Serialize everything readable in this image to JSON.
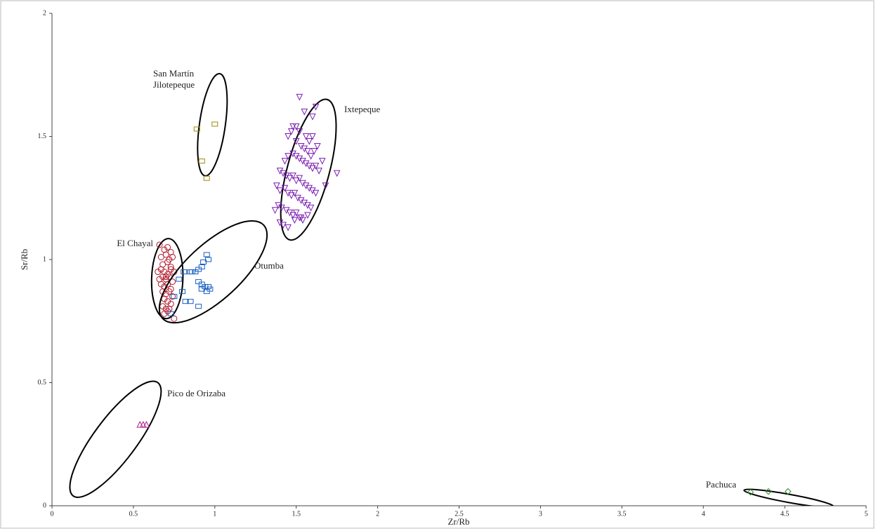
{
  "chart_data": {
    "type": "scatter",
    "x_label": "Zr/Rb",
    "y_label": "Sr/Rb",
    "xlim": [
      0,
      5
    ],
    "ylim": [
      0,
      2
    ],
    "xticks": [
      0,
      0.5,
      1,
      1.5,
      2,
      2.5,
      3,
      3.5,
      4,
      4.5,
      5
    ],
    "yticks": [
      0,
      0.5,
      1,
      1.5,
      2
    ],
    "series": [
      {
        "name": "San Martín\nJilotepeque",
        "color": "#9a8a10",
        "marker": "square",
        "x": [
          0.89,
          1.0,
          0.92,
          0.95
        ],
        "values": [
          1.53,
          1.55,
          1.4,
          1.33
        ],
        "ellipse": {
          "major": [
            [
              1.03,
              1.755
            ],
            [
              0.94,
              1.34
            ]
          ],
          "ratio": 0.25
        }
      },
      {
        "name": "Ixtepeque",
        "color": "#7a1fb0",
        "marker": "triangle-down",
        "x": [
          1.52,
          1.55,
          1.62,
          1.6,
          1.48,
          1.5,
          1.45,
          1.47,
          1.52,
          1.56,
          1.58,
          1.6,
          1.63,
          1.66,
          1.5,
          1.53,
          1.55,
          1.57,
          1.59,
          1.61,
          1.43,
          1.45,
          1.48,
          1.5,
          1.52,
          1.54,
          1.56,
          1.58,
          1.6,
          1.62,
          1.64,
          1.68,
          1.75,
          1.4,
          1.42,
          1.44,
          1.46,
          1.48,
          1.5,
          1.52,
          1.54,
          1.56,
          1.58,
          1.6,
          1.62,
          1.38,
          1.4,
          1.43,
          1.45,
          1.47,
          1.49,
          1.51,
          1.53,
          1.55,
          1.57,
          1.59,
          1.37,
          1.39,
          1.41,
          1.44,
          1.46,
          1.48,
          1.5,
          1.52,
          1.54,
          1.4,
          1.42,
          1.45,
          1.49,
          1.53,
          1.57
        ],
        "values": [
          1.66,
          1.6,
          1.62,
          1.58,
          1.54,
          1.54,
          1.5,
          1.52,
          1.52,
          1.5,
          1.48,
          1.5,
          1.46,
          1.4,
          1.48,
          1.46,
          1.45,
          1.44,
          1.42,
          1.44,
          1.4,
          1.42,
          1.43,
          1.42,
          1.41,
          1.4,
          1.39,
          1.38,
          1.37,
          1.38,
          1.36,
          1.3,
          1.35,
          1.36,
          1.35,
          1.34,
          1.33,
          1.34,
          1.32,
          1.33,
          1.31,
          1.3,
          1.29,
          1.28,
          1.27,
          1.3,
          1.28,
          1.29,
          1.27,
          1.26,
          1.27,
          1.25,
          1.24,
          1.23,
          1.22,
          1.21,
          1.2,
          1.22,
          1.21,
          1.2,
          1.19,
          1.18,
          1.19,
          1.17,
          1.16,
          1.15,
          1.14,
          1.13,
          1.16,
          1.17,
          1.18
        ],
        "ellipse": {
          "major": [
            [
              1.69,
              1.65
            ],
            [
              1.46,
              1.08
            ]
          ],
          "ratio": 0.29
        }
      },
      {
        "name": "El Chayal",
        "color": "#b0182a",
        "marker": "circle",
        "x": [
          0.66,
          0.69,
          0.71,
          0.73,
          0.67,
          0.7,
          0.72,
          0.74,
          0.68,
          0.71,
          0.73,
          0.65,
          0.67,
          0.69,
          0.71,
          0.73,
          0.75,
          0.66,
          0.68,
          0.7,
          0.72,
          0.74,
          0.67,
          0.69,
          0.71,
          0.73,
          0.68,
          0.7,
          0.72,
          0.74,
          0.69,
          0.71,
          0.73,
          0.68,
          0.7,
          0.72,
          0.69,
          0.71,
          0.75,
          0.7
        ],
        "values": [
          1.06,
          1.04,
          1.05,
          1.03,
          1.01,
          1.02,
          1.0,
          1.01,
          0.98,
          0.99,
          0.97,
          0.95,
          0.96,
          0.95,
          0.94,
          0.96,
          0.95,
          0.92,
          0.93,
          0.92,
          0.93,
          0.91,
          0.9,
          0.89,
          0.9,
          0.88,
          0.87,
          0.86,
          0.87,
          0.85,
          0.84,
          0.83,
          0.82,
          0.81,
          0.8,
          0.8,
          0.78,
          0.79,
          0.76,
          0.93
        ],
        "ellipse": {
          "major": [
            [
              0.716,
              1.085
            ],
            [
              0.7,
              0.76
            ]
          ],
          "ratio": 0.39
        }
      },
      {
        "name": "Otumba",
        "color": "#1a5fc0",
        "marker": "square",
        "x": [
          0.85,
          0.88,
          0.9,
          0.92,
          0.95,
          0.96,
          0.93,
          0.9,
          0.92,
          0.94,
          0.96,
          0.92,
          0.95,
          0.81,
          0.8,
          0.82,
          0.85,
          0.9,
          0.75,
          0.73,
          0.78,
          0.86,
          0.97
        ],
        "values": [
          0.95,
          0.95,
          0.96,
          0.97,
          1.02,
          1.0,
          0.99,
          0.91,
          0.9,
          0.89,
          0.89,
          0.88,
          0.87,
          0.95,
          0.87,
          0.83,
          0.83,
          0.81,
          0.85,
          0.78,
          0.92,
          0.95,
          0.88
        ],
        "ellipse": {
          "major": [
            [
              1.3,
              1.14
            ],
            [
              0.68,
              0.76
            ]
          ],
          "ratio": 0.4
        }
      },
      {
        "name": "Pico de Orizaba",
        "color": "#b0208a",
        "marker": "triangle-up",
        "x": [
          0.54,
          0.56,
          0.58
        ],
        "values": [
          0.33,
          0.33,
          0.33
        ],
        "ellipse": {
          "major": [
            [
              0.65,
              0.5
            ],
            [
              0.13,
              0.04
            ]
          ],
          "ratio": 0.3
        }
      },
      {
        "name": "Pachuca",
        "color": "#2a8a2a",
        "marker": "diamond",
        "x": [
          4.29,
          4.4,
          4.52
        ],
        "values": [
          0.055,
          0.058,
          0.058
        ],
        "ellipse": {
          "major": [
            [
              4.25,
              0.063
            ],
            [
              4.8,
              -0.003
            ]
          ],
          "ratio": 0.09
        }
      }
    ]
  }
}
